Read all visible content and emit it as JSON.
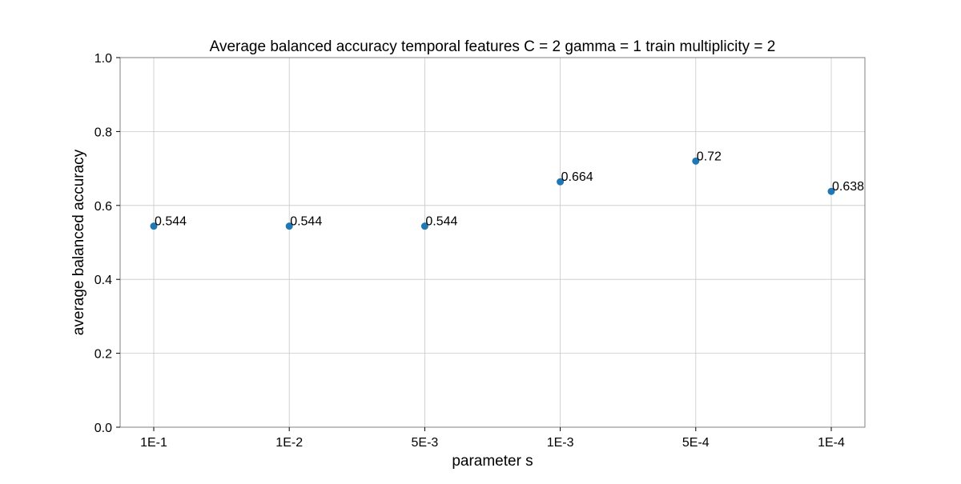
{
  "chart_data": {
    "type": "scatter",
    "title": "Average balanced accuracy temporal features C = 2 gamma = 1 train multiplicity = 2",
    "xlabel": "parameter s",
    "ylabel": "average balanced accuracy",
    "categories": [
      "1E-1",
      "1E-2",
      "5E-3",
      "1E-3",
      "5E-4",
      "1E-4"
    ],
    "values": [
      0.544,
      0.544,
      0.544,
      0.664,
      0.72,
      0.638
    ],
    "point_labels": [
      "0.544",
      "0.544",
      "0.544",
      "0.664",
      "0.72",
      "0.638"
    ],
    "ylim": [
      0,
      1.0
    ],
    "yticks": [
      0.0,
      0.2,
      0.4,
      0.6,
      0.8,
      1.0
    ],
    "ytick_labels": [
      "0.0",
      "0.2",
      "0.4",
      "0.6",
      "0.8",
      "1.0"
    ],
    "grid": true,
    "marker_color": "#1f77b4"
  }
}
